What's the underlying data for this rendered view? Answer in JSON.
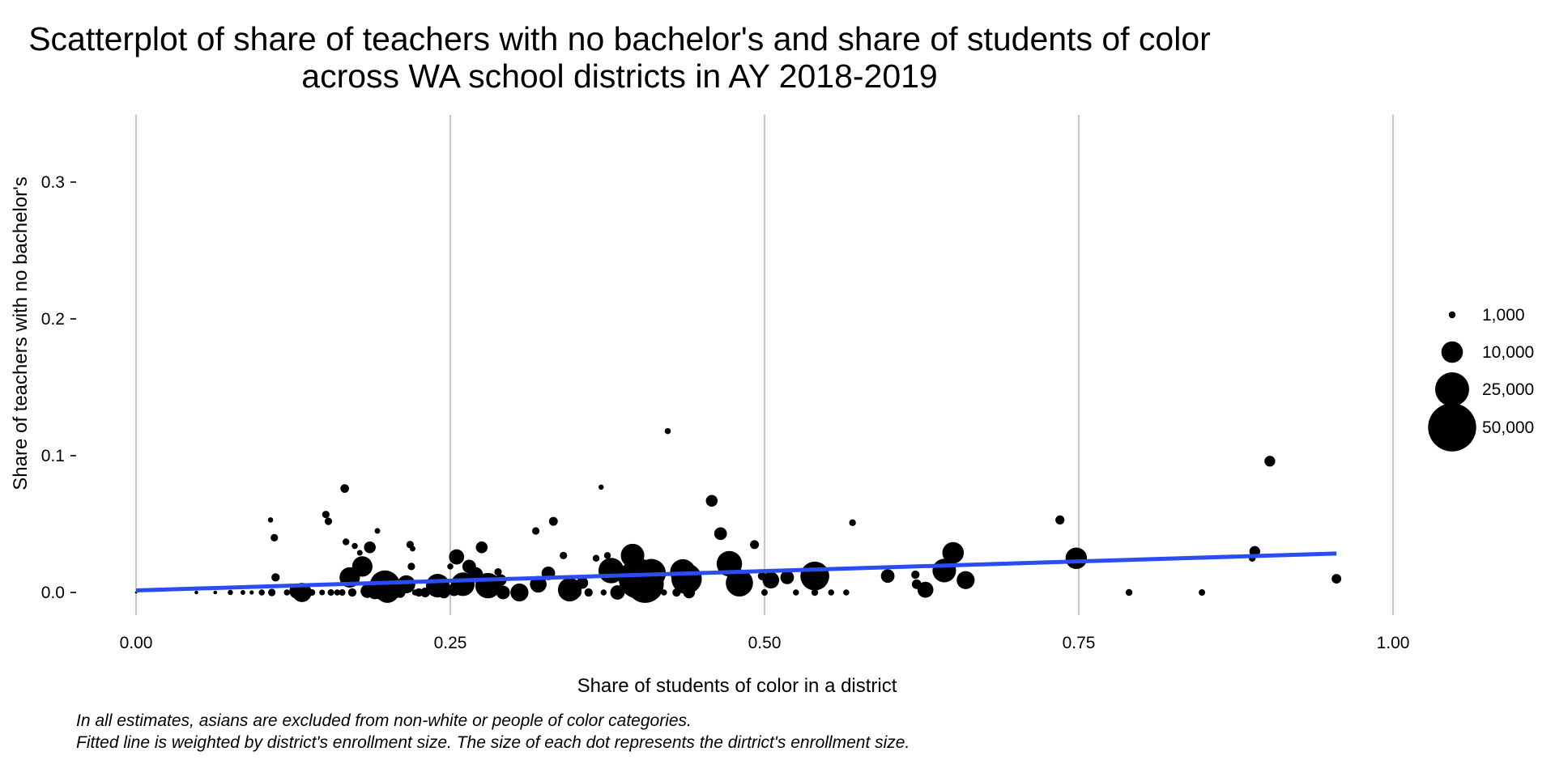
{
  "chart_data": {
    "type": "scatter",
    "title_lines": [
      "Scatterplot of share of teachers with no bachelor's and share of students of color",
      "across WA school districts in AY 2018-2019"
    ],
    "xlabel": "Share of students of color in a district",
    "ylabel": "Share of teachers with no bachelor's",
    "xlim": [
      0,
      1
    ],
    "ylim": [
      -0.02,
      0.35
    ],
    "x_ticks": [
      0,
      0.25,
      0.5,
      0.75,
      1
    ],
    "x_tick_labels": [
      "0.00",
      "0.25",
      "0.50",
      "0.75",
      "1.00"
    ],
    "y_ticks": [
      0,
      0.1,
      0.2,
      0.3
    ],
    "y_tick_labels": [
      "0.0",
      "0.1",
      "0.2",
      "0.3"
    ],
    "grid": "vertical major lines only",
    "legend": {
      "placement": "right",
      "entries": [
        {
          "label": "1,000",
          "size": 1000
        },
        {
          "label": "10,000",
          "size": 10000
        },
        {
          "label": "25,000",
          "size": 25000
        },
        {
          "label": "50,000",
          "size": 50000
        }
      ]
    },
    "fit_line": {
      "color": "#2b4cf0",
      "x": [
        0,
        0.955
      ],
      "y": [
        0.0015,
        0.0285
      ]
    },
    "point_color": "#000000",
    "series": [
      {
        "points": [
          {
            "x": 0.0,
            "y": 0.0,
            "size": 100
          },
          {
            "x": 0.048,
            "y": 0.0,
            "size": 300
          },
          {
            "x": 0.063,
            "y": 0.0,
            "size": 300
          },
          {
            "x": 0.075,
            "y": 0.0,
            "size": 600
          },
          {
            "x": 0.085,
            "y": 0.0,
            "size": 500
          },
          {
            "x": 0.092,
            "y": 0.0,
            "size": 400
          },
          {
            "x": 0.1,
            "y": 0.0,
            "size": 800
          },
          {
            "x": 0.108,
            "y": 0.0,
            "size": 1200
          },
          {
            "x": 0.107,
            "y": 0.053,
            "size": 600
          },
          {
            "x": 0.11,
            "y": 0.04,
            "size": 1200
          },
          {
            "x": 0.111,
            "y": 0.011,
            "size": 1500
          },
          {
            "x": 0.12,
            "y": 0.0,
            "size": 800
          },
          {
            "x": 0.128,
            "y": 0.001,
            "size": 5000
          },
          {
            "x": 0.132,
            "y": 0.0,
            "size": 8000
          },
          {
            "x": 0.14,
            "y": 0.0,
            "size": 900
          },
          {
            "x": 0.148,
            "y": 0.0,
            "size": 700
          },
          {
            "x": 0.151,
            "y": 0.057,
            "size": 1200
          },
          {
            "x": 0.153,
            "y": 0.052,
            "size": 1200
          },
          {
            "x": 0.155,
            "y": 0.0,
            "size": 900
          },
          {
            "x": 0.16,
            "y": 0.0,
            "size": 800
          },
          {
            "x": 0.164,
            "y": 0.0,
            "size": 900
          },
          {
            "x": 0.166,
            "y": 0.076,
            "size": 1600
          },
          {
            "x": 0.167,
            "y": 0.037,
            "size": 1000
          },
          {
            "x": 0.17,
            "y": 0.011,
            "size": 9000
          },
          {
            "x": 0.172,
            "y": 0.0,
            "size": 1500
          },
          {
            "x": 0.174,
            "y": 0.034,
            "size": 800
          },
          {
            "x": 0.176,
            "y": 0.022,
            "size": 700
          },
          {
            "x": 0.178,
            "y": 0.029,
            "size": 700
          },
          {
            "x": 0.18,
            "y": 0.019,
            "size": 9000
          },
          {
            "x": 0.184,
            "y": 0.001,
            "size": 4000
          },
          {
            "x": 0.186,
            "y": 0.033,
            "size": 3000
          },
          {
            "x": 0.19,
            "y": 0.0,
            "size": 4000
          },
          {
            "x": 0.192,
            "y": 0.045,
            "size": 700
          },
          {
            "x": 0.195,
            "y": 0.002,
            "size": 6000
          },
          {
            "x": 0.198,
            "y": 0.005,
            "size": 20000
          },
          {
            "x": 0.2,
            "y": 0.001,
            "size": 12000
          },
          {
            "x": 0.205,
            "y": 0.003,
            "size": 9000
          },
          {
            "x": 0.21,
            "y": 0.0,
            "size": 2500
          },
          {
            "x": 0.215,
            "y": 0.006,
            "size": 7000
          },
          {
            "x": 0.218,
            "y": 0.035,
            "size": 1200
          },
          {
            "x": 0.219,
            "y": 0.019,
            "size": 1200
          },
          {
            "x": 0.22,
            "y": 0.032,
            "size": 700
          },
          {
            "x": 0.222,
            "y": 0.0,
            "size": 800
          },
          {
            "x": 0.225,
            "y": 0.0,
            "size": 1500
          },
          {
            "x": 0.23,
            "y": 0.0,
            "size": 2000
          },
          {
            "x": 0.236,
            "y": 0.0,
            "size": 900
          },
          {
            "x": 0.24,
            "y": 0.005,
            "size": 12000
          },
          {
            "x": 0.245,
            "y": 0.0,
            "size": 3000
          },
          {
            "x": 0.25,
            "y": 0.019,
            "size": 800
          },
          {
            "x": 0.253,
            "y": 0.002,
            "size": 3500
          },
          {
            "x": 0.255,
            "y": 0.026,
            "size": 5000
          },
          {
            "x": 0.26,
            "y": 0.006,
            "size": 12000
          },
          {
            "x": 0.265,
            "y": 0.019,
            "size": 4000
          },
          {
            "x": 0.27,
            "y": 0.013,
            "size": 5000
          },
          {
            "x": 0.275,
            "y": 0.033,
            "size": 3000
          },
          {
            "x": 0.28,
            "y": 0.005,
            "size": 14000
          },
          {
            "x": 0.285,
            "y": 0.003,
            "size": 2500
          },
          {
            "x": 0.288,
            "y": 0.015,
            "size": 1200
          },
          {
            "x": 0.29,
            "y": 0.009,
            "size": 3000
          },
          {
            "x": 0.292,
            "y": 0.0,
            "size": 4000
          },
          {
            "x": 0.305,
            "y": 0.0,
            "size": 7000
          },
          {
            "x": 0.318,
            "y": 0.045,
            "size": 1200
          },
          {
            "x": 0.32,
            "y": 0.006,
            "size": 6000
          },
          {
            "x": 0.328,
            "y": 0.014,
            "size": 4000
          },
          {
            "x": 0.332,
            "y": 0.052,
            "size": 1700
          },
          {
            "x": 0.34,
            "y": 0.027,
            "size": 1200
          },
          {
            "x": 0.345,
            "y": 0.002,
            "size": 12000
          },
          {
            "x": 0.35,
            "y": 0.0,
            "size": 2500
          },
          {
            "x": 0.355,
            "y": 0.007,
            "size": 3000
          },
          {
            "x": 0.36,
            "y": 0.0,
            "size": 1500
          },
          {
            "x": 0.366,
            "y": 0.025,
            "size": 1000
          },
          {
            "x": 0.37,
            "y": 0.077,
            "size": 600
          },
          {
            "x": 0.372,
            "y": 0.0,
            "size": 800
          },
          {
            "x": 0.375,
            "y": 0.027,
            "size": 1000
          },
          {
            "x": 0.378,
            "y": 0.016,
            "size": 14000
          },
          {
            "x": 0.383,
            "y": 0.0,
            "size": 4500
          },
          {
            "x": 0.395,
            "y": 0.027,
            "size": 12000
          },
          {
            "x": 0.4,
            "y": 0.01,
            "size": 35000
          },
          {
            "x": 0.405,
            "y": 0.006,
            "size": 30000
          },
          {
            "x": 0.41,
            "y": 0.014,
            "size": 18000
          },
          {
            "x": 0.42,
            "y": 0.0,
            "size": 800
          },
          {
            "x": 0.423,
            "y": 0.118,
            "size": 800
          },
          {
            "x": 0.43,
            "y": 0.0,
            "size": 1500
          },
          {
            "x": 0.435,
            "y": 0.015,
            "size": 14000
          },
          {
            "x": 0.438,
            "y": 0.01,
            "size": 20000
          },
          {
            "x": 0.44,
            "y": 0.0,
            "size": 3000
          },
          {
            "x": 0.458,
            "y": 0.067,
            "size": 3000
          },
          {
            "x": 0.465,
            "y": 0.043,
            "size": 3500
          },
          {
            "x": 0.472,
            "y": 0.021,
            "size": 14000
          },
          {
            "x": 0.48,
            "y": 0.007,
            "size": 16000
          },
          {
            "x": 0.492,
            "y": 0.035,
            "size": 1700
          },
          {
            "x": 0.498,
            "y": 0.012,
            "size": 1500
          },
          {
            "x": 0.5,
            "y": 0.0,
            "size": 900
          },
          {
            "x": 0.505,
            "y": 0.009,
            "size": 6000
          },
          {
            "x": 0.518,
            "y": 0.011,
            "size": 4000
          },
          {
            "x": 0.525,
            "y": 0.0,
            "size": 800
          },
          {
            "x": 0.54,
            "y": 0.0,
            "size": 1000
          },
          {
            "x": 0.54,
            "y": 0.012,
            "size": 18000
          },
          {
            "x": 0.553,
            "y": 0.0,
            "size": 800
          },
          {
            "x": 0.565,
            "y": 0.0,
            "size": 800
          },
          {
            "x": 0.57,
            "y": 0.051,
            "size": 1000
          },
          {
            "x": 0.598,
            "y": 0.012,
            "size": 4000
          },
          {
            "x": 0.62,
            "y": 0.013,
            "size": 1500
          },
          {
            "x": 0.621,
            "y": 0.006,
            "size": 2000
          },
          {
            "x": 0.628,
            "y": 0.002,
            "size": 5500
          },
          {
            "x": 0.643,
            "y": 0.016,
            "size": 12000
          },
          {
            "x": 0.65,
            "y": 0.029,
            "size": 10000
          },
          {
            "x": 0.66,
            "y": 0.009,
            "size": 7000
          },
          {
            "x": 0.735,
            "y": 0.053,
            "size": 1800
          },
          {
            "x": 0.748,
            "y": 0.025,
            "size": 10000
          },
          {
            "x": 0.79,
            "y": 0.0,
            "size": 1000
          },
          {
            "x": 0.848,
            "y": 0.0,
            "size": 900
          },
          {
            "x": 0.888,
            "y": 0.025,
            "size": 1000
          },
          {
            "x": 0.89,
            "y": 0.03,
            "size": 2500
          },
          {
            "x": 0.902,
            "y": 0.096,
            "size": 2500
          },
          {
            "x": 0.955,
            "y": 0.01,
            "size": 2000
          }
        ]
      }
    ]
  },
  "captions": [
    "In all estimates, asians are excluded from non-white or people of color categories.",
    "Fitted line is weighted by district's enrollment size. The size of each dot represents the dirtrict's enrollment size."
  ]
}
